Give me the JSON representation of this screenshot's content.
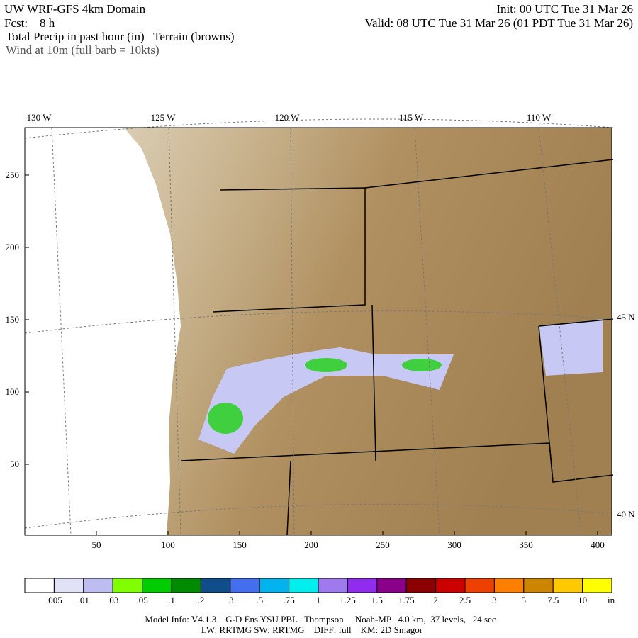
{
  "header": {
    "title": "UW WRF-GFS 4km Domain",
    "init": "Init: 00 UTC Tue 31 Mar 26",
    "fcst": "Fcst:    8 h",
    "valid": "Valid: 08 UTC Tue 31 Mar 26 (01 PDT Tue 31 Mar 26)",
    "field": "Total Precip in past hour (in)   Terrain (browns)",
    "wind": "Wind at 10m (full barb = 10kts)"
  },
  "map": {
    "lon_labels": [
      "130 W",
      "125 W",
      "120 W",
      "115 W",
      "110 W"
    ],
    "lat_labels": [
      "45 N",
      "40 N"
    ],
    "x_labels": [
      50,
      100,
      150,
      200,
      250,
      300,
      350,
      400
    ],
    "y_labels": [
      50,
      100,
      150,
      200,
      250
    ]
  },
  "colorbar": {
    "colors": [
      "#ffffff",
      "#e1e1f8",
      "#bdbdf2",
      "#7fff00",
      "#00cd00",
      "#008b00",
      "#104e8b",
      "#436eee",
      "#00b2ee",
      "#00eeee",
      "#9f79ee",
      "#912cee",
      "#8b008b",
      "#8b0000",
      "#cd0000",
      "#ee4000",
      "#ff7f00",
      "#cd8500",
      "#ffc800",
      "#ffff00"
    ],
    "labels": [
      ".005",
      ".01",
      ".03",
      ".05",
      ".1",
      ".2",
      ".3",
      ".5",
      ".75",
      "1",
      "1.25",
      "1.5",
      "1.75",
      "2",
      "2.5",
      "3",
      "5",
      "7.5",
      "10"
    ],
    "units": "in"
  },
  "footer": {
    "line1": "Model Info: V4.1.3    G-D Ens YSU PBL   Thompson     Noah-MP   4.0 km,  37 levels,   24 sec",
    "line2": "LW: RRTMG SW: RRTMG    DIFF: full    KM: 2D Smagor"
  }
}
